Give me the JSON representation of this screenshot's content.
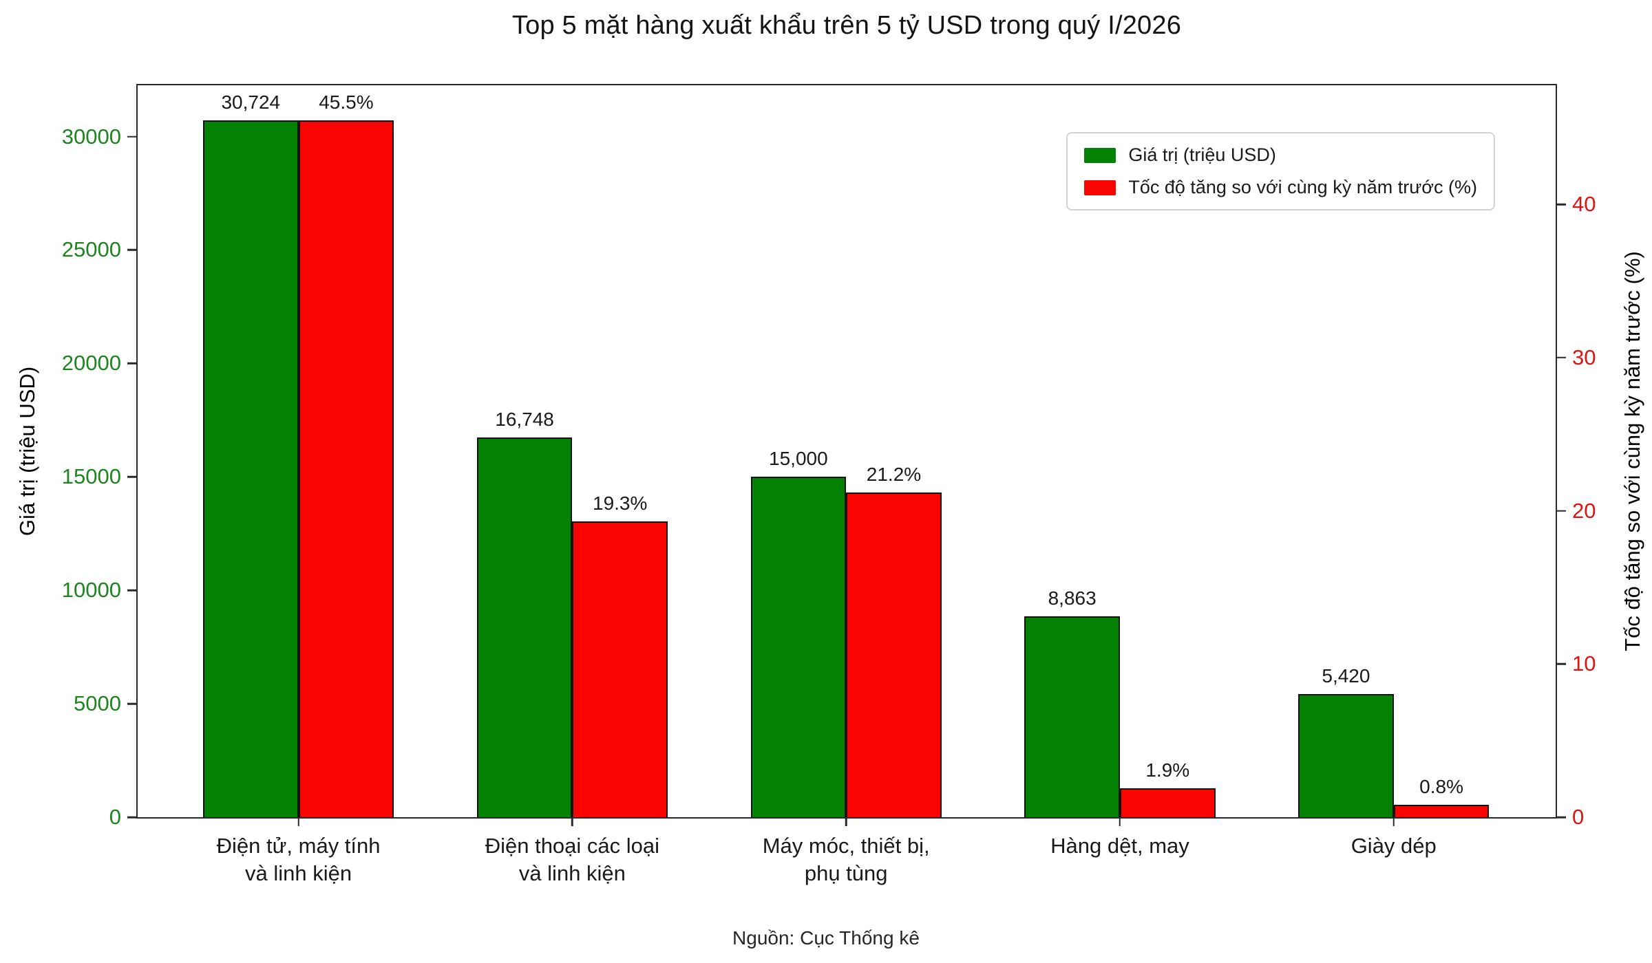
{
  "title": "Top 5 mặt hàng xuất khẩu trên 5 tỷ USD trong quý I/2026",
  "source_note": "Nguồn: Cục Thống kê",
  "chart_data": {
    "type": "bar",
    "title": "Top 5 mặt hàng xuất khẩu trên 5 tỷ USD trong quý I/2026",
    "categories": [
      [
        "Điện tử, máy tính",
        "và linh kiện"
      ],
      [
        "Điện thoại các loại",
        "và linh kiện"
      ],
      [
        "Máy móc, thiết bị,",
        "phụ tùng"
      ],
      [
        "Hàng dệt, may"
      ],
      [
        "Giày dép"
      ]
    ],
    "series": [
      {
        "name": "Giá trị (triệu USD)",
        "axis": "left",
        "color": "#028102",
        "values": [
          30724,
          16748,
          15000,
          8863,
          5420
        ],
        "labels": [
          "30,724",
          "16,748",
          "15,000",
          "8,863",
          "5,420"
        ]
      },
      {
        "name": "Tốc độ tăng so với cùng kỳ năm trước (%)",
        "axis": "right",
        "color": "#fa0400",
        "values": [
          45.5,
          19.3,
          21.2,
          1.9,
          0.8
        ],
        "labels": [
          "45.5%",
          "19.3%",
          "21.2%",
          "1.9%",
          "0.8%"
        ]
      }
    ],
    "left_axis": {
      "label": "Giá trị (triệu USD)",
      "ticks": [
        0,
        5000,
        10000,
        15000,
        20000,
        25000,
        30000
      ],
      "ylim": [
        0,
        32260
      ],
      "color": "#1d851d"
    },
    "right_axis": {
      "label": "Tốc độ tăng so với cùng kỳ năm trước (%)",
      "ticks": [
        0,
        10,
        20,
        30,
        40
      ],
      "ylim": [
        0,
        47.775
      ],
      "color": "#dd1412"
    },
    "legend_position": "upper right",
    "grid": false,
    "layout": {
      "first_group_center_pct": 11.34,
      "group_spacing_pct": 19.31,
      "bar_width_pct": 6.73
    }
  }
}
